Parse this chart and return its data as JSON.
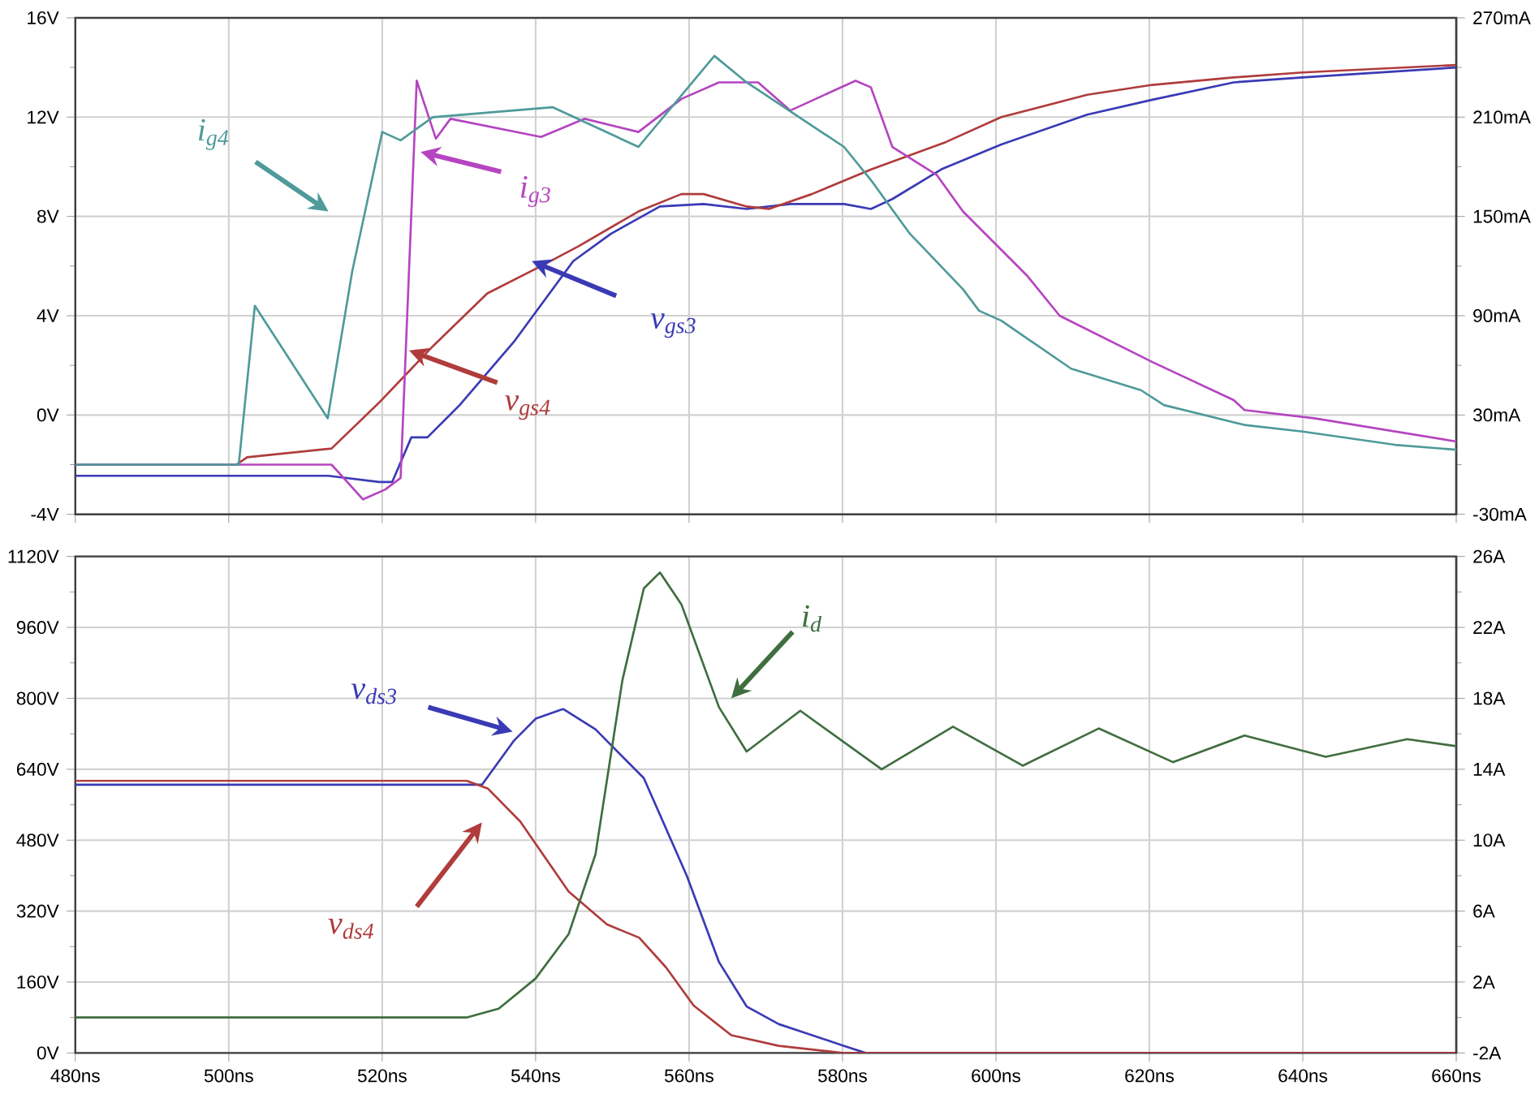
{
  "chart_data": [
    {
      "type": "line",
      "grid": true,
      "marker": "none",
      "tick_labels": "y",
      "xlim": [
        480,
        660
      ],
      "xticks": [
        480,
        500,
        520,
        540,
        560,
        580,
        600,
        620,
        640,
        660
      ],
      "ylim": [
        -4,
        16
      ],
      "yticks": [
        {
          "value": -4,
          "label": "-4V"
        },
        {
          "value": -2,
          "label": null
        },
        {
          "value": 0,
          "label": "0V"
        },
        {
          "value": 2,
          "label": null
        },
        {
          "value": 4,
          "label": "4V"
        },
        {
          "value": 6,
          "label": null
        },
        {
          "value": 8,
          "label": "8V"
        },
        {
          "value": 10,
          "label": null
        },
        {
          "value": 12,
          "label": "12V"
        },
        {
          "value": 14,
          "label": null
        },
        {
          "value": 16,
          "label": "16V"
        }
      ],
      "y2lim": [
        -30,
        270
      ],
      "y2ticks": [
        {
          "value": -30,
          "label": "-30mA"
        },
        {
          "value": 0,
          "label": null
        },
        {
          "value": 30,
          "label": "30mA"
        },
        {
          "value": 60,
          "label": null
        },
        {
          "value": 90,
          "label": "90mA"
        },
        {
          "value": 120,
          "label": null
        },
        {
          "value": 150,
          "label": "150mA"
        },
        {
          "value": 180,
          "label": null
        },
        {
          "value": 210,
          "label": "210mA"
        },
        {
          "value": 240,
          "label": null
        },
        {
          "value": 270,
          "label": "270mA"
        }
      ],
      "series": [
        {
          "name": "v$_{gs3}$",
          "color": "#3a3ab5",
          "x": [
            480,
            513,
            519.6,
            521.3,
            523.8,
            525.9,
            530.1,
            537.3,
            544.9,
            549.8,
            556.2,
            561.9,
            567.5,
            573.2,
            580.2,
            583.7,
            586.5,
            592.9,
            600.7,
            611.9,
            620.4,
            631,
            640,
            660
          ],
          "values": [
            -2.45,
            -2.45,
            -2.7,
            -2.7,
            -0.9,
            -0.9,
            0.4,
            3.0,
            6.2,
            7.3,
            8.4,
            8.5,
            8.3,
            8.5,
            8.5,
            8.3,
            8.7,
            9.9,
            10.9,
            12.1,
            12.7,
            13.4,
            13.6,
            14.0
          ]
        },
        {
          "name": "v$_{gs4}$",
          "color": "#b03c3c",
          "x": [
            480,
            501,
            502.4,
            513.4,
            519.6,
            526.7,
            533.7,
            540.7,
            545.6,
            553.4,
            559,
            561.9,
            567.5,
            570.4,
            576,
            583.8,
            593.5,
            600.7,
            611.9,
            620.4,
            631,
            640,
            660
          ],
          "values": [
            -2.0,
            -2.0,
            -1.7,
            -1.35,
            0.5,
            2.8,
            4.9,
            6.0,
            6.8,
            8.2,
            8.9,
            8.9,
            8.4,
            8.3,
            8.9,
            9.9,
            11.0,
            12.0,
            12.9,
            13.3,
            13.6,
            13.8,
            14.1
          ]
        },
        {
          "name": "i$_{g3}$",
          "color": "#b545c0",
          "axis": "y2",
          "x": [
            480,
            513.4,
            517.5,
            520.4,
            522.4,
            524.5,
            527,
            528.9,
            540.7,
            546.4,
            553.4,
            559,
            563.9,
            569,
            573.2,
            581.7,
            583.7,
            586.5,
            592.3,
            595.7,
            604.1,
            608.3,
            620.4,
            631,
            632.4,
            641.5,
            660
          ],
          "values": [
            0,
            0,
            -21,
            -15,
            -8,
            232,
            197,
            209,
            198,
            209,
            201,
            221,
            231,
            231,
            214,
            232,
            228,
            192,
            175,
            153,
            114,
            90,
            62,
            39,
            33,
            28,
            14
          ]
        },
        {
          "name": "i$_{g4}$",
          "color": "#4f9a9a",
          "axis": "y2",
          "x": [
            480,
            501.3,
            503.4,
            512.9,
            516.1,
            520,
            522.4,
            526.6,
            542.2,
            553.4,
            563.3,
            567.5,
            580.2,
            583.7,
            588.7,
            595.7,
            597.8,
            600.7,
            609.8,
            618.9,
            621.9,
            632.4,
            640,
            652,
            660
          ],
          "values": [
            0,
            0,
            96,
            28,
            117,
            201,
            196,
            210,
            216,
            192,
            247,
            231,
            192,
            172,
            140,
            106,
            93,
            87,
            58,
            45,
            36,
            24,
            20,
            12,
            9
          ]
        }
      ]
    },
    {
      "type": "line",
      "grid": true,
      "marker": "none",
      "xlim": [
        480,
        660
      ],
      "xticks": [
        {
          "value": 480,
          "label": "480ns"
        },
        {
          "value": 500,
          "label": "500ns"
        },
        {
          "value": 520,
          "label": "520ns"
        },
        {
          "value": 540,
          "label": "540ns"
        },
        {
          "value": 560,
          "label": "560ns"
        },
        {
          "value": 580,
          "label": "580ns"
        },
        {
          "value": 600,
          "label": "600ns"
        },
        {
          "value": 620,
          "label": "620ns"
        },
        {
          "value": 640,
          "label": "640ns"
        },
        {
          "value": 660,
          "label": "660ns"
        }
      ],
      "ylim": [
        0,
        1120
      ],
      "yticks": [
        {
          "value": 0,
          "label": "0V"
        },
        {
          "value": 80,
          "label": null
        },
        {
          "value": 160,
          "label": "160V"
        },
        {
          "value": 240,
          "label": null
        },
        {
          "value": 320,
          "label": "320V"
        },
        {
          "value": 400,
          "label": null
        },
        {
          "value": 480,
          "label": "480V"
        },
        {
          "value": 560,
          "label": null
        },
        {
          "value": 640,
          "label": "640V"
        },
        {
          "value": 720,
          "label": null
        },
        {
          "value": 800,
          "label": "800V"
        },
        {
          "value": 880,
          "label": null
        },
        {
          "value": 960,
          "label": "960V"
        },
        {
          "value": 1040,
          "label": null
        },
        {
          "value": 1120,
          "label": "1120V"
        }
      ],
      "y2lim": [
        -2,
        26
      ],
      "y2ticks": [
        {
          "value": -2,
          "label": "-2A"
        },
        {
          "value": 0,
          "label": null
        },
        {
          "value": 2,
          "label": "2A"
        },
        {
          "value": 4,
          "label": null
        },
        {
          "value": 6,
          "label": "6A"
        },
        {
          "value": 8,
          "label": null
        },
        {
          "value": 10,
          "label": "10A"
        },
        {
          "value": 12,
          "label": null
        },
        {
          "value": 14,
          "label": "14A"
        },
        {
          "value": 16,
          "label": null
        },
        {
          "value": 18,
          "label": "18A"
        },
        {
          "value": 20,
          "label": null
        },
        {
          "value": 22,
          "label": "22A"
        },
        {
          "value": 24,
          "label": null
        },
        {
          "value": 26,
          "label": "26A"
        }
      ],
      "series": [
        {
          "name": "v$_{ds3}$",
          "color": "#3a3ab5",
          "x": [
            480,
            533,
            537.2,
            540,
            543.6,
            547.8,
            554.1,
            559.7,
            563.9,
            567.5,
            571.7,
            580.2,
            583,
            660
          ],
          "values": [
            605,
            605,
            705,
            754,
            776,
            730,
            620,
            400,
            205,
            105,
            65,
            16,
            0,
            0
          ]
        },
        {
          "name": "v$_{ds4}$",
          "color": "#b03c3c",
          "x": [
            480,
            531,
            533.8,
            538,
            544.3,
            549.3,
            553.5,
            557,
            560.6,
            565.5,
            571.7,
            580,
            660
          ],
          "values": [
            614,
            614,
            596,
            522,
            364,
            290,
            260,
            193,
            107,
            40,
            16,
            0,
            0
          ]
        },
        {
          "name": "i$_{d}$",
          "color": "#3f6e3f",
          "axis": "y2",
          "x": [
            480,
            531,
            535.2,
            540,
            544.3,
            547.8,
            551.3,
            554.1,
            556.2,
            559,
            563.9,
            567.5,
            574.5,
            585.1,
            594.4,
            603.5,
            613.4,
            623.1,
            632.4,
            643,
            653.6,
            660
          ],
          "values": [
            0,
            0,
            0.5,
            2.2,
            4.7,
            9.2,
            19,
            24.2,
            25.1,
            23.3,
            17.5,
            15.0,
            17.3,
            14.0,
            16.4,
            14.2,
            16.3,
            14.4,
            15.9,
            14.7,
            15.7,
            15.3
          ]
        }
      ]
    }
  ]
}
